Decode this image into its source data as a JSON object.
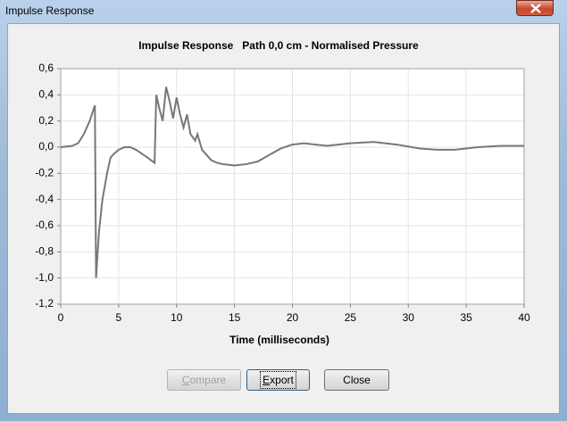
{
  "window": {
    "title": "Impulse Response"
  },
  "chart_data": {
    "type": "line",
    "title": "Impulse Response   Path 0,0 cm - Normalised Pressure",
    "x_label": "Time (milliseconds)",
    "x": [
      0,
      1,
      1.5,
      2,
      2.5,
      2.95,
      3.05,
      3.3,
      3.6,
      4,
      4.3,
      4.6,
      5,
      5.5,
      6,
      6.5,
      7,
      7.5,
      8.1,
      8.25,
      8.5,
      8.8,
      9.1,
      9.4,
      9.7,
      10,
      10.3,
      10.6,
      10.9,
      11.2,
      11.6,
      11.8,
      12.2,
      12.6,
      13,
      13.5,
      14,
      15,
      16,
      17,
      18,
      19,
      20,
      21,
      22,
      23,
      25,
      27,
      29,
      31,
      32.5,
      34,
      36,
      38,
      40
    ],
    "values": [
      0,
      0.01,
      0.03,
      0.1,
      0.2,
      0.32,
      -1.0,
      -0.65,
      -0.4,
      -0.2,
      -0.08,
      -0.05,
      -0.02,
      0,
      0,
      -0.02,
      -0.05,
      -0.08,
      -0.12,
      0.4,
      0.3,
      0.2,
      0.46,
      0.35,
      0.22,
      0.38,
      0.25,
      0.15,
      0.25,
      0.1,
      0.05,
      0.1,
      -0.02,
      -0.06,
      -0.1,
      -0.12,
      -0.13,
      -0.14,
      -0.13,
      -0.11,
      -0.06,
      -0.01,
      0.02,
      0.03,
      0.02,
      0.01,
      0.03,
      0.04,
      0.02,
      -0.01,
      -0.02,
      -0.02,
      0,
      0.01,
      0.01
    ],
    "color": "#777777",
    "xlim": [
      0,
      40
    ],
    "xticks": [
      0,
      5,
      10,
      15,
      20,
      25,
      30,
      35,
      40
    ],
    "ylim": [
      -1.2,
      0.6
    ],
    "yticks": [
      {
        "value": -1.2,
        "label": "-1,2"
      },
      {
        "value": -1.0,
        "label": "-1,0"
      },
      {
        "value": -0.8,
        "label": "-0,8"
      },
      {
        "value": -0.6,
        "label": "-0,6"
      },
      {
        "value": -0.4,
        "label": "-0,4"
      },
      {
        "value": -0.2,
        "label": "-0,2"
      },
      {
        "value": 0,
        "label": "0,0"
      },
      {
        "value": 0.2,
        "label": "0,2"
      },
      {
        "value": 0.4,
        "label": "0,4"
      },
      {
        "value": 0.6,
        "label": "0,6"
      }
    ],
    "grid": true
  },
  "buttons": [
    {
      "label": "Compare"
    },
    {
      "label": "Export"
    },
    {
      "label": "Close"
    }
  ]
}
